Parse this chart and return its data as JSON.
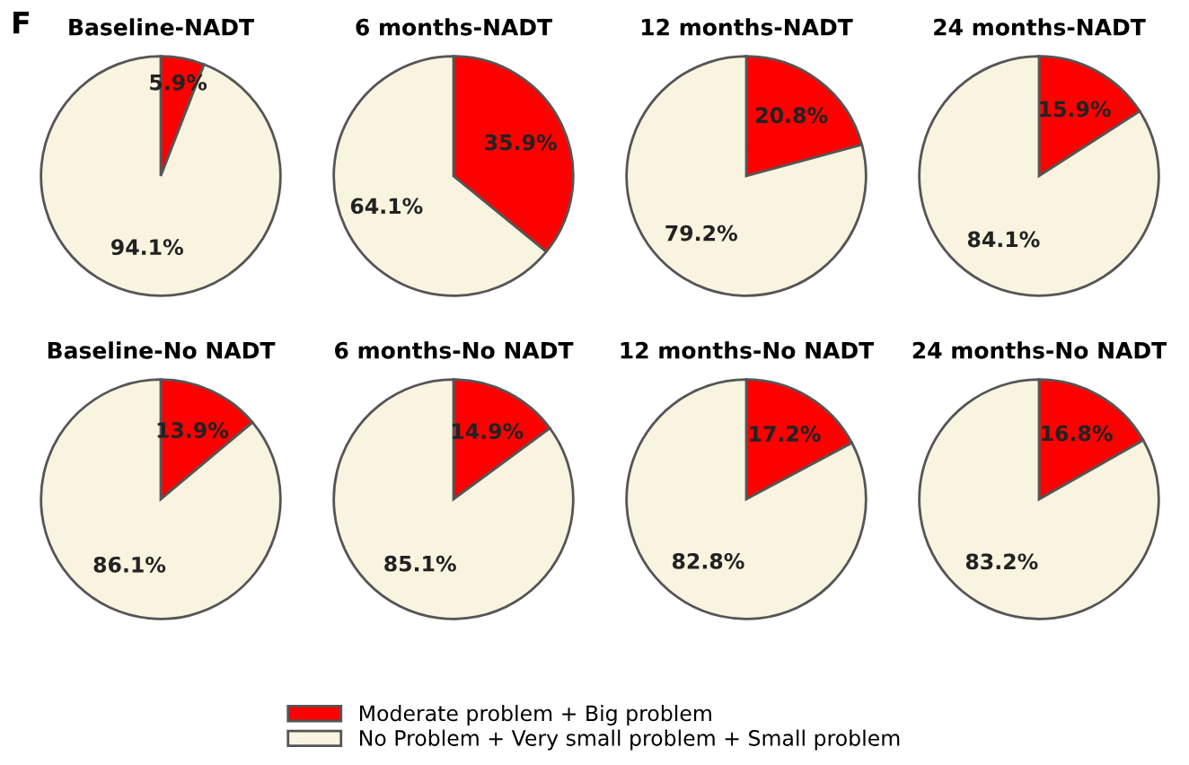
{
  "chart_data": [
    {
      "type": "pie",
      "title": "Baseline-NADT",
      "annotations": [
        "F"
      ],
      "legend": "bottom",
      "categories": [
        "Moderate problem + Big problem",
        "No Problem + Very small problem + Small problem"
      ],
      "values": [
        5.9,
        94.1
      ],
      "colors": [
        "#ff0000",
        "#f8f4e0"
      ],
      "value_labels": [
        "5.9%",
        "94.1%"
      ]
    },
    {
      "type": "pie",
      "title": "6 months-NADT",
      "values": [
        35.9,
        64.1
      ],
      "colors": [
        "#ff0000",
        "#f8f4e0"
      ],
      "value_labels": [
        "35.9%",
        "64.1%"
      ]
    },
    {
      "type": "pie",
      "title": "12 months-NADT",
      "values": [
        20.8,
        79.2
      ],
      "colors": [
        "#ff0000",
        "#f8f4e0"
      ],
      "value_labels": [
        "20.8%",
        "79.2%"
      ]
    },
    {
      "type": "pie",
      "title": "24 months-NADT",
      "values": [
        15.9,
        84.1
      ],
      "colors": [
        "#ff0000",
        "#f8f4e0"
      ],
      "value_labels": [
        "15.9%",
        "84.1%"
      ]
    },
    {
      "type": "pie",
      "title": "Baseline-No NADT",
      "values": [
        13.9,
        86.1
      ],
      "colors": [
        "#ff0000",
        "#f8f4e0"
      ],
      "value_labels": [
        "13.9%",
        "86.1%"
      ]
    },
    {
      "type": "pie",
      "title": "6 months-No NADT",
      "values": [
        14.9,
        85.1
      ],
      "colors": [
        "#ff0000",
        "#f8f4e0"
      ],
      "value_labels": [
        "14.9%",
        "85.1%"
      ]
    },
    {
      "type": "pie",
      "title": "12 months-No NADT",
      "values": [
        17.2,
        82.8
      ],
      "colors": [
        "#ff0000",
        "#f8f4e0"
      ],
      "value_labels": [
        "17.2%",
        "82.8%"
      ]
    },
    {
      "type": "pie",
      "title": "24 months-No NADT",
      "values": [
        16.8,
        83.2
      ],
      "colors": [
        "#ff0000",
        "#f8f4e0"
      ],
      "value_labels": [
        "16.8%",
        "83.2%"
      ]
    }
  ]
}
